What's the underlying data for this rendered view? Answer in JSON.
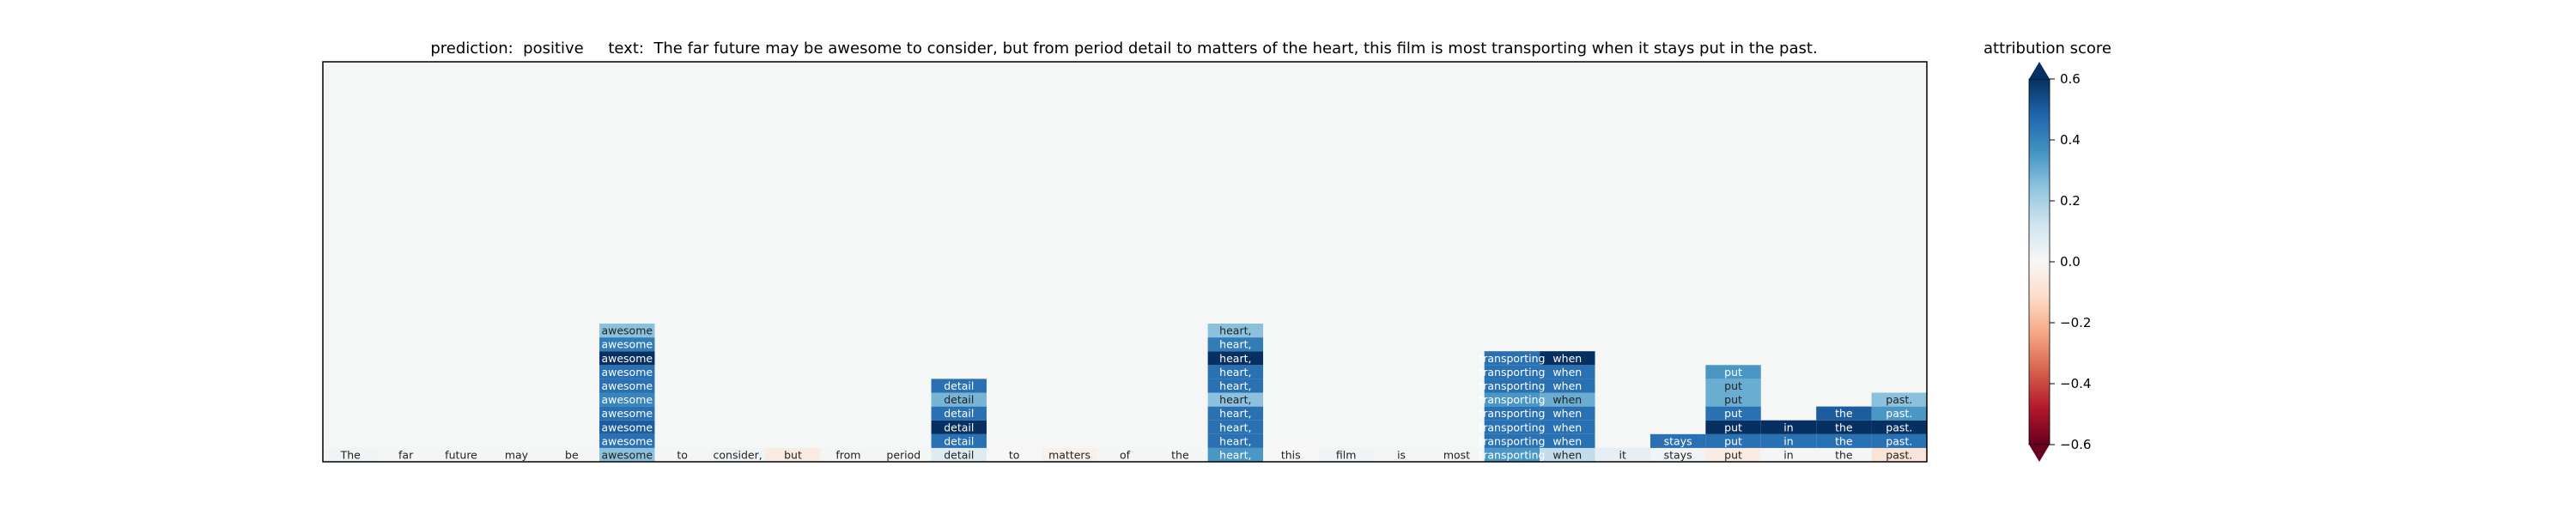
{
  "chart_data": {
    "type": "heatmap",
    "title": "prediction:  positive     text:  The far future may be awesome to consider, but from period detail to matters of the heart, this film is most transporting when it stays put in the past.",
    "tokens": [
      "The",
      "far",
      "future",
      "may",
      "be",
      "awesome",
      "to",
      "consider,",
      "but",
      "from",
      "period",
      "detail",
      "to",
      "matters",
      "of",
      "the",
      "heart,",
      "this",
      "film",
      "is",
      "most",
      "transporting",
      "when",
      "it",
      "stays",
      "put",
      "in",
      "the",
      "past."
    ],
    "base_row_scores": [
      0.02,
      0.01,
      0.01,
      0.01,
      0.01,
      0.25,
      0.01,
      0.02,
      -0.05,
      0.01,
      0.01,
      0.08,
      0.0,
      -0.03,
      0.01,
      0.01,
      0.35,
      0.0,
      0.02,
      0.01,
      0.01,
      0.35,
      0.15,
      0.05,
      0.02,
      -0.05,
      0.01,
      0.01,
      -0.08
    ],
    "columns": [
      {
        "token_index": 5,
        "label": "awesome",
        "values": [
          0.45,
          0.5,
          0.45,
          0.4,
          0.45,
          0.45,
          0.62,
          0.42,
          0.25
        ]
      },
      {
        "token_index": 11,
        "label": "detail",
        "values": [
          0.45,
          0.62,
          0.45,
          0.28,
          0.45
        ]
      },
      {
        "token_index": 16,
        "label": "heart,",
        "values": [
          0.45,
          0.45,
          0.45,
          0.25,
          0.45,
          0.45,
          0.62,
          0.42,
          0.25
        ]
      },
      {
        "token_index": 21,
        "label": "transporting",
        "values": [
          0.45,
          0.45,
          0.45,
          0.35,
          0.45,
          0.45,
          0.45
        ]
      },
      {
        "token_index": 22,
        "label": "when",
        "values": [
          0.45,
          0.45,
          0.45,
          0.3,
          0.45,
          0.45,
          0.62
        ]
      },
      {
        "token_index": 24,
        "label": "stays",
        "values": [
          0.45
        ]
      },
      {
        "token_index": 25,
        "label": "put",
        "values": [
          0.45,
          0.62,
          0.45,
          0.3,
          0.3,
          0.35
        ]
      },
      {
        "token_index": 26,
        "label": "in",
        "values": [
          0.45,
          0.62
        ]
      },
      {
        "token_index": 27,
        "label": "the",
        "values": [
          0.45,
          0.62,
          0.5
        ]
      },
      {
        "token_index": 28,
        "label": "past.",
        "values": [
          0.45,
          0.62,
          0.35,
          0.25
        ]
      }
    ],
    "colorbar": {
      "label": "attribution score",
      "min": -0.6,
      "max": 0.6,
      "ticks": [
        0.6,
        0.4,
        0.2,
        0.0,
        -0.2,
        -0.4,
        -0.6
      ],
      "tick_labels": [
        "0.6",
        "0.4",
        "0.2",
        "0.0",
        "−0.2",
        "−0.4",
        "−0.6"
      ],
      "colormap": "RdBu"
    },
    "background_color": "#f5f7f6"
  }
}
